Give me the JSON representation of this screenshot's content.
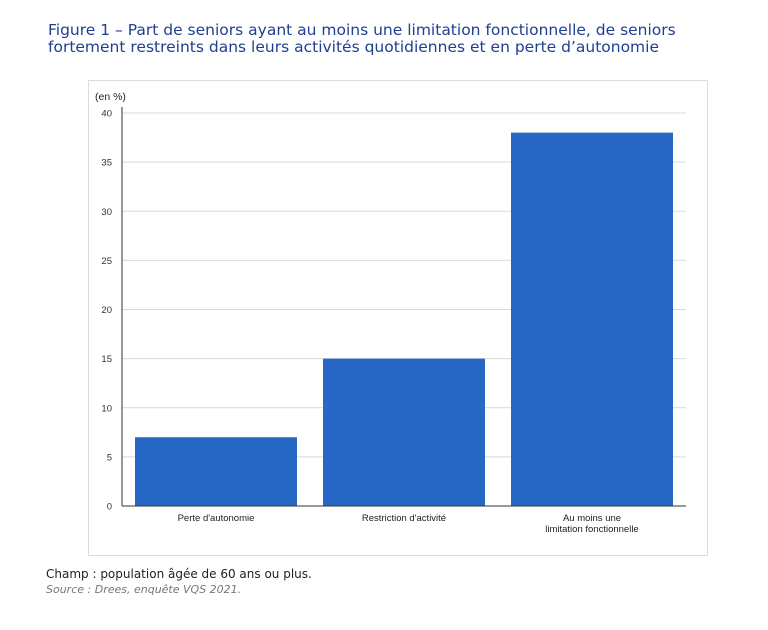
{
  "title_lines": [
    "Figure 1 – Part de seniors ayant au moins une limitation fonctionnelle, de seniors",
    "fortement restreints dans leurs activités quotidiennes et en perte d’autonomie"
  ],
  "notes": {
    "champ": "Champ : population âgée de 60 ans ou plus.",
    "source": "Source : Drees, enquête VQS 2021."
  },
  "chart_data": {
    "type": "bar",
    "unit_label": "(en %)",
    "categories": [
      [
        "Perte d'autonomie"
      ],
      [
        "Restriction d'activité"
      ],
      [
        "Au moins une",
        "limitation fonctionnelle"
      ]
    ],
    "values": [
      7,
      15,
      38
    ],
    "ylim": [
      0,
      40
    ],
    "yticks": [
      0,
      5,
      10,
      15,
      20,
      25,
      30,
      35,
      40
    ],
    "grid": true,
    "bar_color": "#2768c7"
  }
}
